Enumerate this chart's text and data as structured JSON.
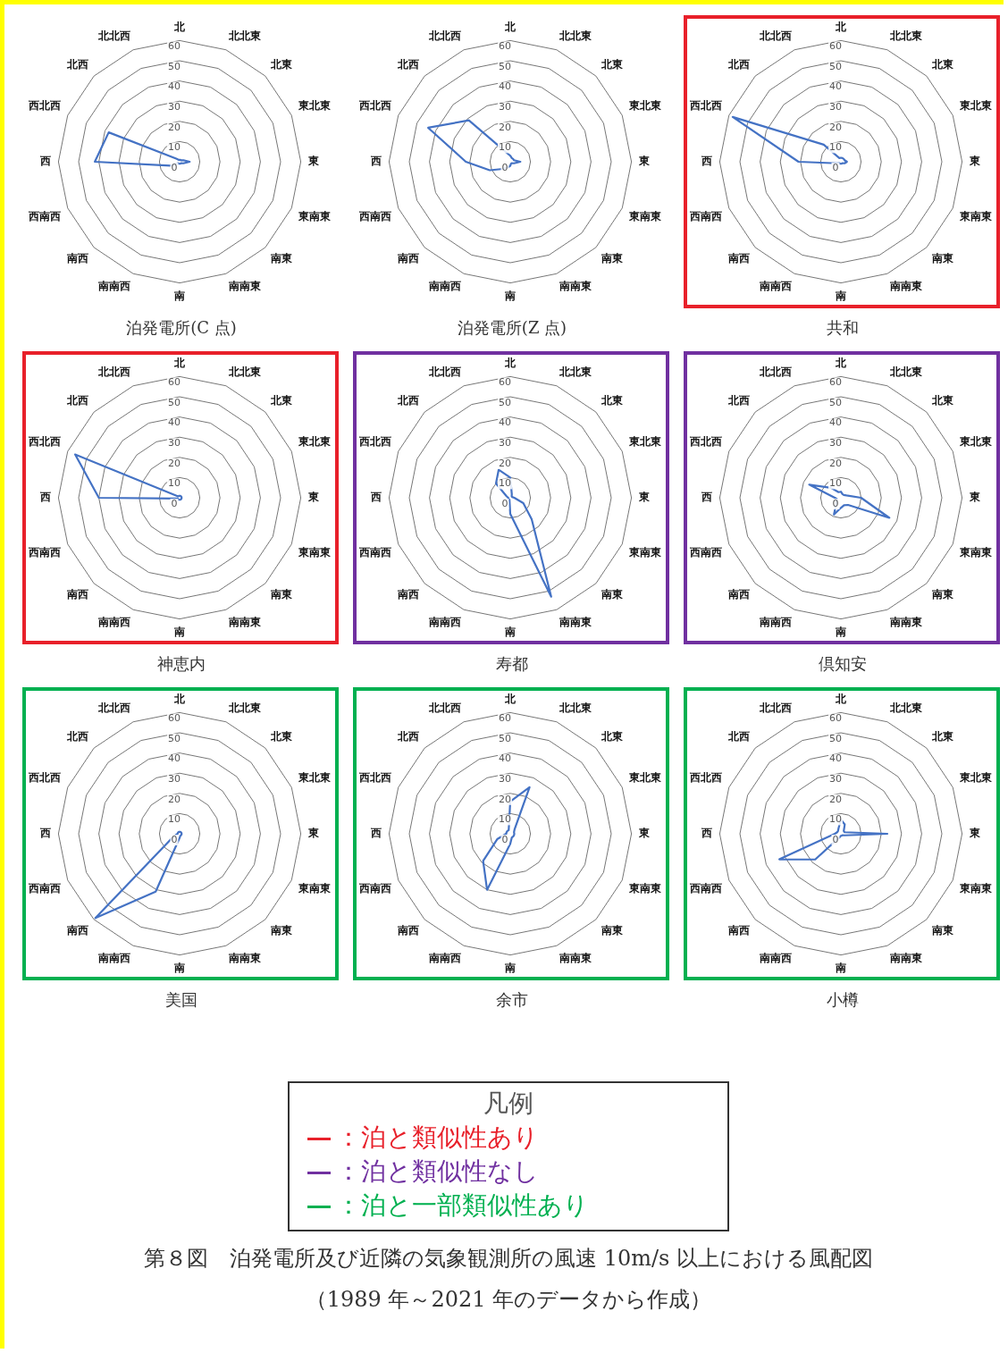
{
  "chart_data": [
    {
      "type": "radar",
      "title": "泊発電所(C 点)",
      "categories": [
        "北",
        "北北東",
        "北東",
        "東北東",
        "東",
        "東南東",
        "南東",
        "南南東",
        "南",
        "南南西",
        "南西",
        "西南西",
        "西",
        "西北西",
        "北西",
        "北北西"
      ],
      "series": [
        {
          "color": "#4472c4",
          "values": [
            1,
            1,
            1,
            2,
            5,
            2,
            1,
            1,
            1,
            1,
            1,
            5,
            42,
            38,
            2,
            1
          ]
        }
      ],
      "ylim": [
        0,
        60
      ],
      "yticks": [
        0,
        10,
        20,
        30,
        40,
        50,
        60
      ],
      "grid": true,
      "marker": "none"
    },
    {
      "type": "radar",
      "title": "泊発電所(Z 点)",
      "categories": [
        "北",
        "北北東",
        "北東",
        "東北東",
        "東",
        "東南東",
        "南東",
        "南南東",
        "南",
        "南南西",
        "南西",
        "西南西",
        "西",
        "西北西",
        "北西",
        "北北西"
      ],
      "series": [
        {
          "color": "#4472c4",
          "values": [
            3,
            2,
            2,
            2,
            5,
            2,
            1,
            1,
            2,
            3,
            5,
            11,
            22,
            44,
            29,
            5
          ]
        }
      ],
      "ylim": [
        0,
        60
      ],
      "yticks": [
        0,
        10,
        20,
        30,
        40,
        50,
        60
      ],
      "grid": true,
      "marker": "none"
    },
    {
      "type": "radar",
      "title": "共和",
      "categories": [
        "北",
        "北北東",
        "北東",
        "東北東",
        "東",
        "東南東",
        "南東",
        "南南東",
        "南",
        "南南西",
        "南西",
        "西南西",
        "西",
        "西北西",
        "北西",
        "北北西"
      ],
      "series": [
        {
          "color": "#4472c4",
          "values": [
            2,
            2,
            2,
            2,
            3,
            2,
            1,
            1,
            1,
            1,
            1,
            2,
            21,
            58,
            12,
            2
          ]
        }
      ],
      "ylim": [
        0,
        60
      ],
      "yticks": [
        0,
        10,
        20,
        30,
        40,
        50,
        60
      ],
      "grid": true,
      "marker": "none"
    },
    {
      "type": "radar",
      "title": "神恵内",
      "categories": [
        "北",
        "北北東",
        "北東",
        "東北東",
        "東",
        "東南東",
        "南東",
        "南南東",
        "南",
        "南南西",
        "南西",
        "西南西",
        "西",
        "西北西",
        "北西",
        "北北西"
      ],
      "series": [
        {
          "color": "#4472c4",
          "values": [
            1,
            1,
            1,
            1,
            1,
            1,
            1,
            1,
            1,
            1,
            1,
            1,
            40,
            56,
            1,
            1
          ]
        }
      ],
      "ylim": [
        0,
        60
      ],
      "yticks": [
        0,
        10,
        20,
        30,
        40,
        50,
        60
      ],
      "grid": true,
      "marker": "none"
    },
    {
      "type": "radar",
      "title": "寿都",
      "categories": [
        "北",
        "北北東",
        "北東",
        "東北東",
        "東",
        "東南東",
        "南東",
        "南南東",
        "南",
        "南南西",
        "南西",
        "西南西",
        "西",
        "西北西",
        "北西",
        "北北西"
      ],
      "series": [
        {
          "color": "#4472c4",
          "values": [
            10,
            2,
            1,
            1,
            2,
            7,
            15,
            53,
            8,
            1,
            1,
            1,
            1,
            2,
            10,
            15
          ]
        }
      ],
      "ylim": [
        0,
        60
      ],
      "yticks": [
        0,
        10,
        20,
        30,
        40,
        50,
        60
      ],
      "grid": true,
      "marker": "none"
    },
    {
      "type": "radar",
      "title": "倶知安",
      "categories": [
        "北",
        "北北東",
        "北東",
        "東北東",
        "東",
        "東南東",
        "南東",
        "南南東",
        "南",
        "南南西",
        "南西",
        "西南西",
        "西",
        "西北西",
        "北西",
        "北北西"
      ],
      "series": [
        {
          "color": "#4472c4",
          "values": [
            3,
            2,
            2,
            3,
            10,
            26,
            5,
            4,
            5,
            9,
            3,
            2,
            3,
            17,
            7,
            3
          ]
        }
      ],
      "ylim": [
        0,
        60
      ],
      "yticks": [
        0,
        10,
        20,
        30,
        40,
        50,
        60
      ],
      "grid": true,
      "marker": "none"
    },
    {
      "type": "radar",
      "title": "美国",
      "categories": [
        "北",
        "北北東",
        "北東",
        "東北東",
        "東",
        "東南東",
        "南東",
        "南南東",
        "南",
        "南南西",
        "南西",
        "西南西",
        "西",
        "西北西",
        "北西",
        "北北西"
      ],
      "series": [
        {
          "color": "#4472c4",
          "values": [
            1,
            1,
            1,
            1,
            1,
            1,
            1,
            1,
            2,
            31,
            59,
            3,
            1,
            1,
            1,
            1
          ]
        }
      ],
      "ylim": [
        0,
        60
      ],
      "yticks": [
        0,
        10,
        20,
        30,
        40,
        50,
        60
      ],
      "grid": true,
      "marker": "none"
    },
    {
      "type": "radar",
      "title": "余市",
      "categories": [
        "北",
        "北北東",
        "北東",
        "東北東",
        "東",
        "東南東",
        "南東",
        "南南東",
        "南",
        "南南西",
        "南西",
        "西南西",
        "西",
        "西北西",
        "北西",
        "北北西"
      ],
      "series": [
        {
          "color": "#4472c4",
          "values": [
            16,
            25,
            3,
            2,
            2,
            2,
            2,
            2,
            5,
            30,
            19,
            7,
            2,
            2,
            2,
            2
          ]
        }
      ],
      "ylim": [
        0,
        60
      ],
      "yticks": [
        0,
        10,
        20,
        30,
        40,
        50,
        60
      ],
      "grid": true,
      "marker": "none"
    },
    {
      "type": "radar",
      "title": "小樽",
      "categories": [
        "北",
        "北北東",
        "北東",
        "東北東",
        "東",
        "東南東",
        "南東",
        "南南東",
        "南",
        "南南西",
        "南西",
        "西南西",
        "西",
        "西北西",
        "北西",
        "北北西"
      ],
      "series": [
        {
          "color": "#4472c4",
          "values": [
            7,
            5,
            2,
            2,
            23,
            2,
            1,
            1,
            1,
            2,
            18,
            33,
            3,
            2,
            2,
            3
          ]
        }
      ],
      "ylim": [
        0,
        60
      ],
      "yticks": [
        0,
        10,
        20,
        30,
        40,
        50,
        60
      ],
      "grid": true,
      "marker": "none"
    },
    {
      "type": "other",
      "legend_title": "凡例",
      "categories": [
        "：泊と類似性あり",
        "：泊と類似性なし",
        "：泊と一部類似性あり"
      ],
      "colors": [
        "#e8202a",
        "#7030a0",
        "#00b050"
      ],
      "annotations": [
        "第８図　泊発電所及び近隣の気象観測所の風速 10m/s 以上における風配図",
        "（1989 年～2021 年のデータから作成）"
      ]
    }
  ]
}
